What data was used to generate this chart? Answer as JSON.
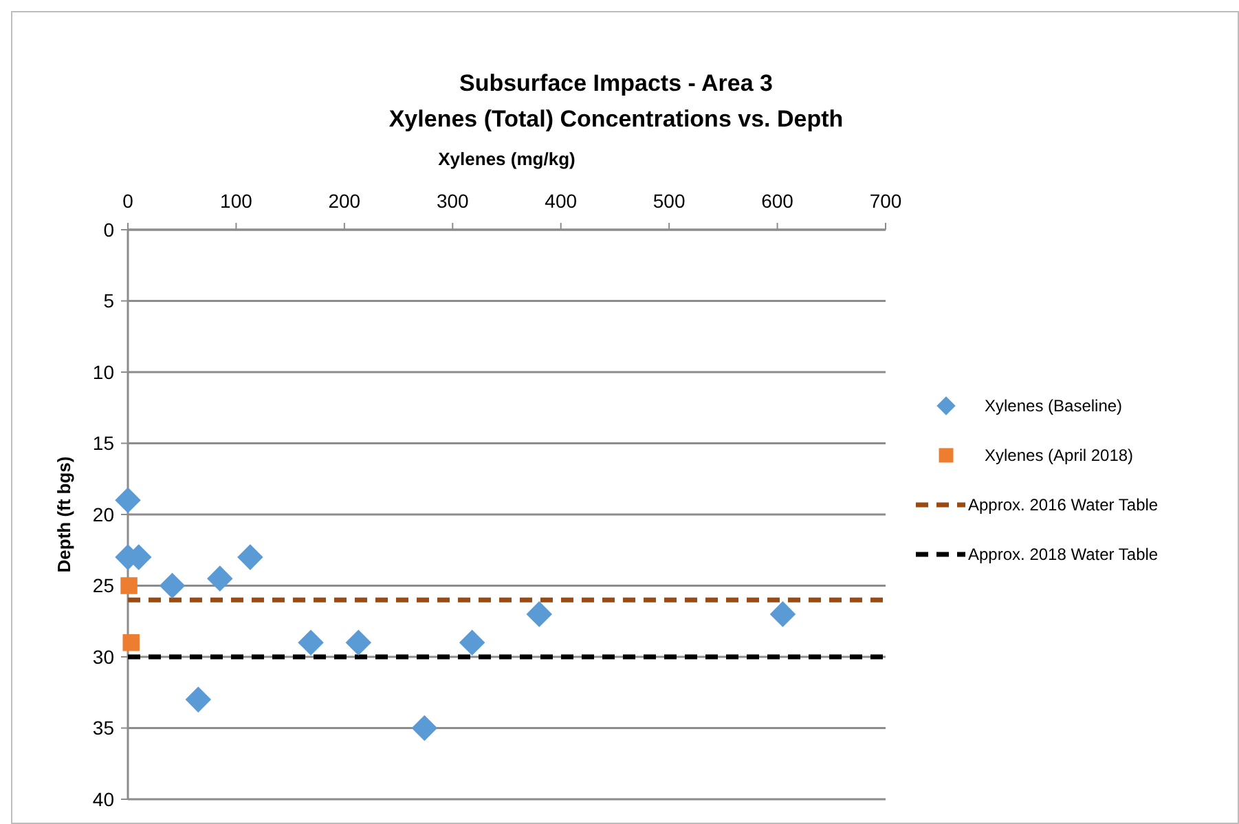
{
  "chart_data": {
    "type": "scatter",
    "title": "Subsurface Impacts - Area 3",
    "subtitle": "Xylenes (Total) Concentrations vs. Depth",
    "xlabel": "Xylenes (mg/kg)",
    "ylabel": "Depth (ft bgs)",
    "xlim": [
      0,
      700
    ],
    "xticks": [
      0,
      100,
      200,
      300,
      400,
      500,
      600,
      700
    ],
    "ylim": [
      40,
      0
    ],
    "yticks": [
      0,
      5,
      10,
      15,
      20,
      25,
      30,
      35,
      40
    ],
    "grid": "y",
    "legend": "right",
    "series": [
      {
        "name": "Xylenes (Baseline)",
        "marker": "diamond",
        "color": "#5b9bd5",
        "x": [
          0,
          0,
          10,
          41,
          85,
          113,
          65,
          169,
          213,
          274,
          318,
          380,
          605
        ],
        "values": [
          19,
          23,
          23,
          25,
          24.5,
          23,
          33,
          29,
          29,
          35,
          29,
          27,
          27
        ]
      },
      {
        "name": "Xylenes (April 2018)",
        "marker": "square",
        "color": "#ed7d31",
        "x": [
          1,
          3
        ],
        "values": [
          25,
          29
        ]
      },
      {
        "name": "Approx. 2016 Water Table",
        "type": "line",
        "marker": "none",
        "line_style": "dashed",
        "color": "#9c4a0f",
        "x": [
          0,
          700
        ],
        "values": [
          26,
          26
        ]
      },
      {
        "name": "Approx. 2018 Water Table",
        "type": "line",
        "marker": "none",
        "line_style": "dashed",
        "color": "#000000",
        "x": [
          0,
          700
        ],
        "values": [
          30,
          30
        ]
      }
    ]
  }
}
